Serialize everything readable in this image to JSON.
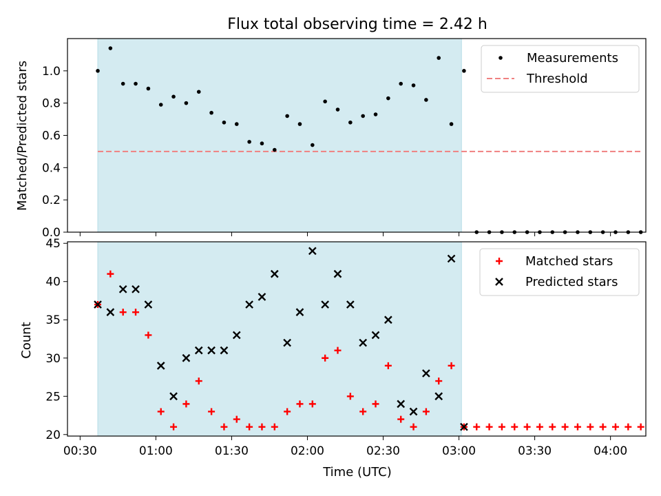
{
  "title": "Flux total observing time = 2.42 h",
  "colors": {
    "shade": "#d4ebf1",
    "threshold": "#f08080",
    "matched": "#ff0000",
    "predicted": "#000000",
    "measurements": "#000000"
  },
  "chart_data": [
    {
      "type": "scatter",
      "title": "Flux total observing time = 2.42 h",
      "ylabel": "Matched/Predicted stars",
      "xlabel": "",
      "xlim": [
        "00:25",
        "04:14"
      ],
      "ylim": [
        0,
        1.2
      ],
      "yticks": [
        "0.0",
        "0.2",
        "0.4",
        "0.6",
        "0.8",
        "1.0"
      ],
      "legend_position": "top-right",
      "shaded_interval": [
        "00:37",
        "03:01"
      ],
      "series": [
        {
          "name": "Measurements",
          "x": [
            "00:37",
            "00:42",
            "00:47",
            "00:52",
            "00:57",
            "01:02",
            "01:07",
            "01:12",
            "01:17",
            "01:22",
            "01:27",
            "01:32",
            "01:37",
            "01:42",
            "01:47",
            "01:52",
            "01:57",
            "02:02",
            "02:07",
            "02:12",
            "02:17",
            "02:22",
            "02:27",
            "02:32",
            "02:37",
            "02:42",
            "02:47",
            "02:52",
            "02:57",
            "03:02",
            "03:07",
            "03:12",
            "03:17",
            "03:22",
            "03:27",
            "03:32",
            "03:37",
            "03:42",
            "03:47",
            "03:52",
            "03:57",
            "04:02",
            "04:07",
            "04:12"
          ],
          "values": [
            1.0,
            1.14,
            0.92,
            0.92,
            0.89,
            0.79,
            0.84,
            0.8,
            0.87,
            0.74,
            0.68,
            0.67,
            0.56,
            0.55,
            0.51,
            0.72,
            0.67,
            0.54,
            0.81,
            0.76,
            0.68,
            0.72,
            0.73,
            0.83,
            0.92,
            0.91,
            0.82,
            1.08,
            0.67,
            1.0,
            0,
            0,
            0,
            0,
            0,
            0,
            0,
            0,
            0,
            0,
            0,
            0,
            0,
            0
          ]
        },
        {
          "name": "Threshold",
          "x": [
            "00:37",
            "04:12"
          ],
          "values": [
            0.5,
            0.5
          ]
        }
      ]
    },
    {
      "type": "scatter",
      "title": "",
      "ylabel": "Count",
      "xlabel": "Time (UTC)",
      "xlim": [
        "00:25",
        "04:14"
      ],
      "ylim": [
        19.8,
        45.2
      ],
      "yticks": [
        "20",
        "25",
        "30",
        "35",
        "40",
        "45"
      ],
      "xticks": [
        "00:30",
        "01:00",
        "01:30",
        "02:00",
        "02:30",
        "03:00",
        "03:30",
        "04:00"
      ],
      "legend_position": "top-right",
      "shaded_interval": [
        "00:37",
        "03:01"
      ],
      "series": [
        {
          "name": "Matched stars",
          "x": [
            "00:37",
            "00:42",
            "00:47",
            "00:52",
            "00:57",
            "01:02",
            "01:07",
            "01:12",
            "01:17",
            "01:22",
            "01:27",
            "01:32",
            "01:37",
            "01:42",
            "01:47",
            "01:52",
            "01:57",
            "02:02",
            "02:07",
            "02:12",
            "02:17",
            "02:22",
            "02:27",
            "02:32",
            "02:37",
            "02:42",
            "02:47",
            "02:52",
            "02:57",
            "03:02",
            "03:07",
            "03:12",
            "03:17",
            "03:22",
            "03:27",
            "03:32",
            "03:37",
            "03:42",
            "03:47",
            "03:52",
            "03:57",
            "04:02",
            "04:07",
            "04:12"
          ],
          "values": [
            37,
            41,
            36,
            36,
            33,
            23,
            21,
            24,
            27,
            23,
            21,
            22,
            21,
            21,
            21,
            23,
            24,
            24,
            30,
            31,
            25,
            23,
            24,
            29,
            22,
            21,
            23,
            27,
            29,
            21,
            21,
            21,
            21,
            21,
            21,
            21,
            21,
            21,
            21,
            21,
            21,
            21,
            21,
            21
          ]
        },
        {
          "name": "Predicted stars",
          "x": [
            "00:37",
            "00:42",
            "00:47",
            "00:52",
            "00:57",
            "01:02",
            "01:07",
            "01:12",
            "01:17",
            "01:22",
            "01:27",
            "01:32",
            "01:37",
            "01:42",
            "01:47",
            "01:52",
            "01:57",
            "02:02",
            "02:07",
            "02:12",
            "02:17",
            "02:22",
            "02:27",
            "02:32",
            "02:37",
            "02:42",
            "02:47",
            "02:52",
            "02:57",
            "03:02"
          ],
          "values": [
            37,
            36,
            39,
            39,
            37,
            29,
            25,
            30,
            31,
            31,
            31,
            33,
            37,
            38,
            41,
            32,
            36,
            44,
            37,
            41,
            37,
            32,
            33,
            35,
            24,
            23,
            28,
            25,
            43,
            21
          ]
        }
      ]
    }
  ]
}
